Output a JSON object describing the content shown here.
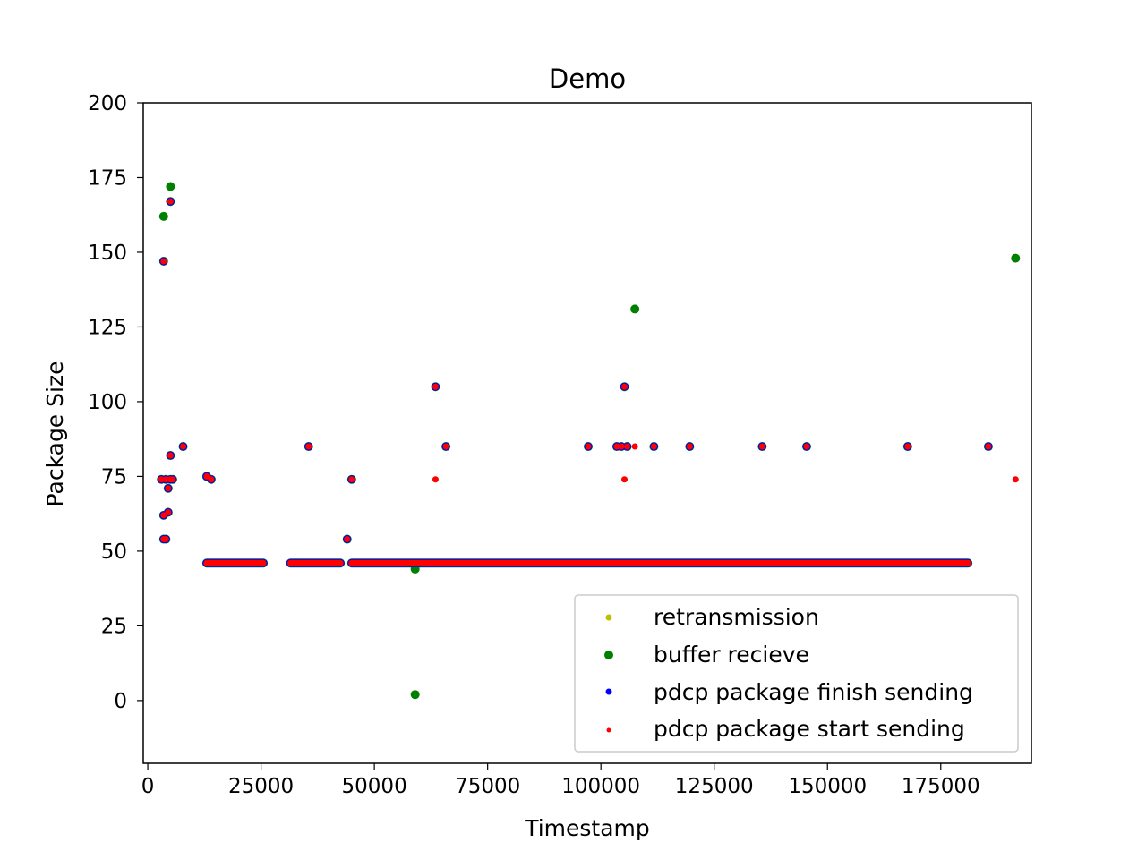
{
  "chart_data": {
    "type": "scatter",
    "title": "Demo",
    "xlabel": "Timestamp",
    "ylabel": "Package Size",
    "xlim": [
      -1000,
      195000
    ],
    "ylim": [
      -21,
      200
    ],
    "xticks": [
      0,
      25000,
      50000,
      75000,
      100000,
      125000,
      150000,
      175000
    ],
    "yticks": [
      0,
      25,
      50,
      75,
      100,
      125,
      150,
      175,
      200
    ],
    "xtick_labels": [
      "0",
      "25000",
      "50000",
      "75000",
      "100000",
      "125000",
      "150000",
      "175000"
    ],
    "ytick_labels": [
      "0",
      "25",
      "50",
      "75",
      "100",
      "125",
      "150",
      "175",
      "200"
    ],
    "grid": false,
    "legend_position": "lower-right",
    "series": [
      {
        "name": "retransmission",
        "color": "#bfbf00",
        "marker_size": 3,
        "points": []
      },
      {
        "name": "buffer recieve",
        "color": "#008000",
        "marker_size": 5,
        "points": [
          [
            3500,
            162
          ],
          [
            5000,
            172
          ],
          [
            5000,
            167
          ],
          [
            3500,
            147
          ],
          [
            3000,
            74
          ],
          [
            4000,
            74
          ],
          [
            5000,
            74
          ],
          [
            5500,
            74
          ],
          [
            3500,
            62
          ],
          [
            4500,
            63
          ],
          [
            4500,
            71
          ],
          [
            5000,
            82
          ],
          [
            3500,
            54
          ],
          [
            4000,
            54
          ],
          [
            7800,
            85
          ],
          [
            13000,
            75
          ],
          [
            14000,
            74
          ],
          [
            35500,
            85
          ],
          [
            44000,
            54
          ],
          [
            45000,
            74
          ],
          [
            59000,
            44
          ],
          [
            59000,
            2
          ],
          [
            63500,
            105
          ],
          [
            65800,
            85
          ],
          [
            97200,
            85
          ],
          [
            103500,
            85
          ],
          [
            104500,
            85
          ],
          [
            105200,
            105
          ],
          [
            105800,
            85
          ],
          [
            107500,
            131
          ],
          [
            111700,
            85
          ],
          [
            119600,
            85
          ],
          [
            135600,
            85
          ],
          [
            145400,
            85
          ],
          [
            167700,
            85
          ],
          [
            185500,
            85
          ],
          [
            191500,
            148
          ]
        ],
        "band": {
          "y": 46,
          "segments": [
            [
              13000,
              25500
            ],
            [
              31500,
              42500
            ],
            [
              45000,
              181000
            ]
          ]
        }
      },
      {
        "name": "pdcp package finish sending",
        "color": "#0000ff",
        "marker_size": 4.5,
        "points": [
          [
            5000,
            167
          ],
          [
            3500,
            147
          ],
          [
            3000,
            74
          ],
          [
            4000,
            74
          ],
          [
            5000,
            74
          ],
          [
            5500,
            74
          ],
          [
            3500,
            62
          ],
          [
            4500,
            63
          ],
          [
            4500,
            71
          ],
          [
            5000,
            82
          ],
          [
            3500,
            54
          ],
          [
            4000,
            54
          ],
          [
            7800,
            85
          ],
          [
            13000,
            75
          ],
          [
            14000,
            74
          ],
          [
            35500,
            85
          ],
          [
            44000,
            54
          ],
          [
            45000,
            74
          ],
          [
            63500,
            105
          ],
          [
            65800,
            85
          ],
          [
            97200,
            85
          ],
          [
            103500,
            85
          ],
          [
            104500,
            85
          ],
          [
            105200,
            105
          ],
          [
            105800,
            85
          ],
          [
            111700,
            85
          ],
          [
            119600,
            85
          ],
          [
            135600,
            85
          ],
          [
            145400,
            85
          ],
          [
            167700,
            85
          ],
          [
            185500,
            85
          ]
        ],
        "band": {
          "y": 46,
          "segments": [
            [
              13000,
              25500
            ],
            [
              31500,
              42500
            ],
            [
              45000,
              181000
            ]
          ]
        }
      },
      {
        "name": "pdcp package start sending",
        "color": "#ff0000",
        "marker_size": 3.5,
        "points": [
          [
            5000,
            167
          ],
          [
            3500,
            147
          ],
          [
            3000,
            74
          ],
          [
            4000,
            74
          ],
          [
            5000,
            74
          ],
          [
            5500,
            74
          ],
          [
            3500,
            62
          ],
          [
            4500,
            63
          ],
          [
            4500,
            71
          ],
          [
            5000,
            82
          ],
          [
            3500,
            54
          ],
          [
            4000,
            54
          ],
          [
            7800,
            85
          ],
          [
            13000,
            75
          ],
          [
            14000,
            74
          ],
          [
            35500,
            85
          ],
          [
            44000,
            54
          ],
          [
            45000,
            74
          ],
          [
            63500,
            105
          ],
          [
            63500,
            74
          ],
          [
            65800,
            85
          ],
          [
            97200,
            85
          ],
          [
            103500,
            85
          ],
          [
            104500,
            85
          ],
          [
            105200,
            105
          ],
          [
            105200,
            74
          ],
          [
            105800,
            85
          ],
          [
            107500,
            85
          ],
          [
            111700,
            85
          ],
          [
            119600,
            85
          ],
          [
            135600,
            85
          ],
          [
            145400,
            85
          ],
          [
            167700,
            85
          ],
          [
            185500,
            85
          ],
          [
            191500,
            74
          ]
        ],
        "band": {
          "y": 46,
          "segments": [
            [
              13000,
              25500
            ],
            [
              31500,
              42500
            ],
            [
              45000,
              181000
            ]
          ]
        }
      }
    ]
  }
}
